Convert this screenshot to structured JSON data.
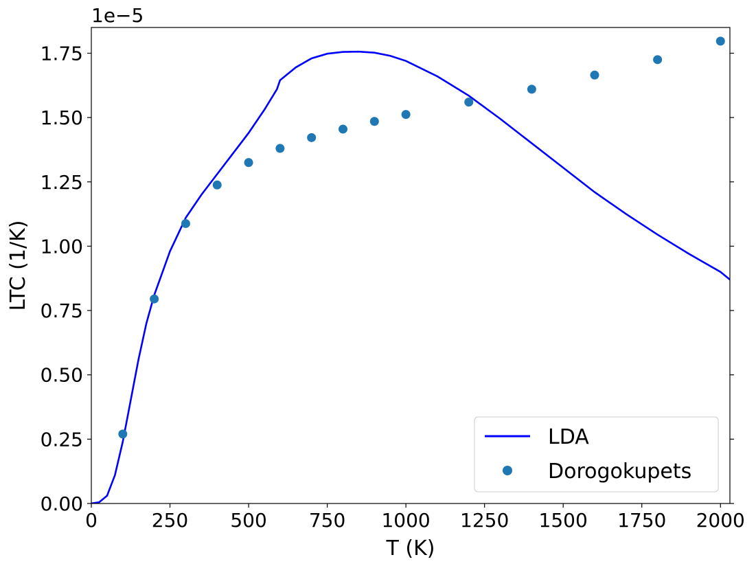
{
  "chart_data": {
    "type": "line",
    "title": "",
    "xlabel": "T (K)",
    "ylabel": "LTC (1/K)",
    "y_offset_label": "1e−5",
    "xlim": [
      0,
      2030
    ],
    "ylim": [
      0,
      1.85
    ],
    "x_ticks": [
      0,
      250,
      500,
      750,
      1000,
      1250,
      1500,
      1750,
      2000
    ],
    "x_tick_labels": [
      "0",
      "250",
      "500",
      "750",
      "1000",
      "1250",
      "1500",
      "1750",
      "2000"
    ],
    "y_ticks": [
      0,
      0.25,
      0.5,
      0.75,
      1.0,
      1.25,
      1.5,
      1.75
    ],
    "y_tick_labels": [
      "0.00",
      "0.25",
      "0.50",
      "0.75",
      "1.00",
      "1.25",
      "1.50",
      "1.75"
    ],
    "grid": false,
    "legend_position": "lower-right",
    "series": [
      {
        "name": "LDA",
        "kind": "line",
        "color": "#0000ff",
        "x": [
          0,
          25,
          50,
          75,
          100,
          125,
          150,
          175,
          200,
          250,
          300,
          350,
          400,
          450,
          500,
          550,
          590,
          600,
          650,
          700,
          750,
          800,
          850,
          900,
          950,
          1000,
          1100,
          1200,
          1300,
          1400,
          1500,
          1600,
          1700,
          1800,
          1900,
          2000,
          2030
        ],
        "y": [
          0,
          0.005,
          0.03,
          0.11,
          0.24,
          0.4,
          0.56,
          0.7,
          0.81,
          0.98,
          1.11,
          1.2,
          1.28,
          1.36,
          1.44,
          1.53,
          1.61,
          1.645,
          1.695,
          1.73,
          1.748,
          1.755,
          1.756,
          1.752,
          1.74,
          1.72,
          1.66,
          1.585,
          1.495,
          1.4,
          1.305,
          1.21,
          1.125,
          1.045,
          0.97,
          0.9,
          0.87
        ]
      },
      {
        "name": "Dorogokupets",
        "kind": "scatter",
        "color": "#1f77b4",
        "x": [
          100,
          200,
          300,
          400,
          500,
          600,
          700,
          800,
          900,
          1000,
          1200,
          1400,
          1600,
          1800,
          2000
        ],
        "y": [
          0.27,
          0.795,
          1.088,
          1.238,
          1.325,
          1.38,
          1.422,
          1.455,
          1.485,
          1.512,
          1.56,
          1.61,
          1.665,
          1.725,
          1.797
        ]
      }
    ]
  }
}
